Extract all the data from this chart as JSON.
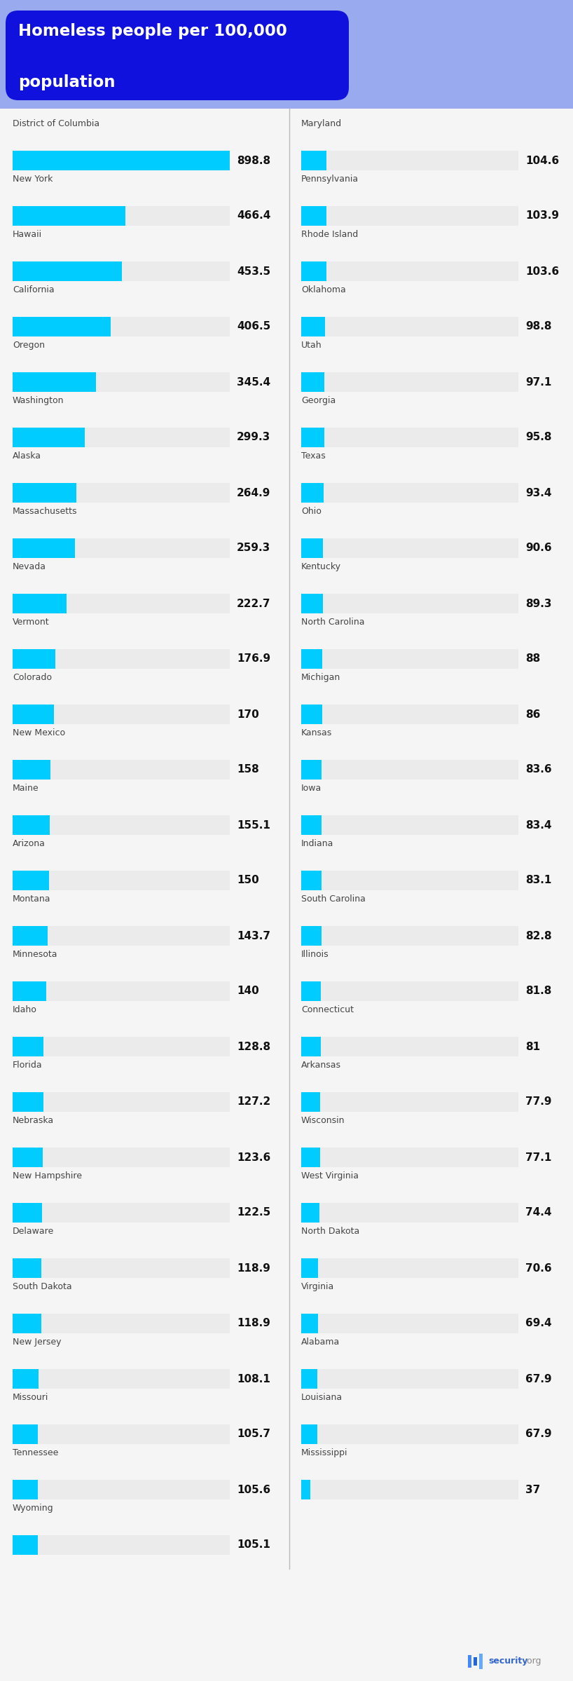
{
  "title_line1": "Homeless people per 100,000",
  "title_line2": "population",
  "title_bg_color": "#1111dd",
  "header_bg_color": "#99aaee",
  "bar_color": "#00ccff",
  "bar_bg_color": "#ebebeb",
  "text_color": "#444444",
  "value_color": "#111111",
  "bg_color": "#f5f5f5",
  "divider_color": "#bbbbbb",
  "left_data": [
    {
      "state": "District of Columbia",
      "value": 898.8
    },
    {
      "state": "New York",
      "value": 466.4
    },
    {
      "state": "Hawaii",
      "value": 453.5
    },
    {
      "state": "California",
      "value": 406.5
    },
    {
      "state": "Oregon",
      "value": 345.4
    },
    {
      "state": "Washington",
      "value": 299.3
    },
    {
      "state": "Alaska",
      "value": 264.9
    },
    {
      "state": "Massachusetts",
      "value": 259.3
    },
    {
      "state": "Nevada",
      "value": 222.7
    },
    {
      "state": "Vermont",
      "value": 176.9
    },
    {
      "state": "Colorado",
      "value": 170.0
    },
    {
      "state": "New Mexico",
      "value": 158.0
    },
    {
      "state": "Maine",
      "value": 155.1
    },
    {
      "state": "Arizona",
      "value": 150.0
    },
    {
      "state": "Montana",
      "value": 143.7
    },
    {
      "state": "Minnesota",
      "value": 140.0
    },
    {
      "state": "Idaho",
      "value": 128.8
    },
    {
      "state": "Florida",
      "value": 127.2
    },
    {
      "state": "Nebraska",
      "value": 123.6
    },
    {
      "state": "New Hampshire",
      "value": 122.5
    },
    {
      "state": "Delaware",
      "value": 118.9
    },
    {
      "state": "South Dakota",
      "value": 118.9
    },
    {
      "state": "New Jersey",
      "value": 108.1
    },
    {
      "state": "Missouri",
      "value": 105.7
    },
    {
      "state": "Tennessee",
      "value": 105.6
    },
    {
      "state": "Wyoming",
      "value": 105.1
    }
  ],
  "right_data": [
    {
      "state": "Maryland",
      "value": 104.6
    },
    {
      "state": "Pennsylvania",
      "value": 103.9
    },
    {
      "state": "Rhode Island",
      "value": 103.6
    },
    {
      "state": "Oklahoma",
      "value": 98.8
    },
    {
      "state": "Utah",
      "value": 97.1
    },
    {
      "state": "Georgia",
      "value": 95.8
    },
    {
      "state": "Texas",
      "value": 93.4
    },
    {
      "state": "Ohio",
      "value": 90.6
    },
    {
      "state": "Kentucky",
      "value": 89.3
    },
    {
      "state": "North Carolina",
      "value": 88.0
    },
    {
      "state": "Michigan",
      "value": 86.0
    },
    {
      "state": "Kansas",
      "value": 83.6
    },
    {
      "state": "Iowa",
      "value": 83.4
    },
    {
      "state": "Indiana",
      "value": 83.1
    },
    {
      "state": "South Carolina",
      "value": 82.8
    },
    {
      "state": "Illinois",
      "value": 81.8
    },
    {
      "state": "Connecticut",
      "value": 81.0
    },
    {
      "state": "Arkansas",
      "value": 77.9
    },
    {
      "state": "Wisconsin",
      "value": 77.1
    },
    {
      "state": "West Virginia",
      "value": 74.4
    },
    {
      "state": "North Dakota",
      "value": 70.6
    },
    {
      "state": "Virginia",
      "value": 69.4
    },
    {
      "state": "Alabama",
      "value": 67.9
    },
    {
      "state": "Louisiana",
      "value": 67.9
    },
    {
      "state": "Mississippi",
      "value": 37.0
    }
  ],
  "max_value": 898.8,
  "logo_text": "security",
  "logo_tld": ".org"
}
